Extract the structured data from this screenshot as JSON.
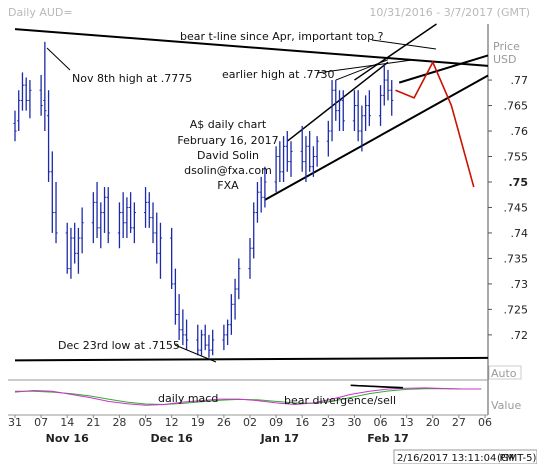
{
  "header": {
    "title": "Daily AUD=",
    "date_range": "10/31/2016 - 3/7/2017 (GMT)"
  },
  "right_panel": {
    "price_label": "Price",
    "currency_label": "USD",
    "auto_label": "Auto",
    "value_label": "Value"
  },
  "footer": {
    "timestamp": "2/16/2017 13:11:04 PM",
    "timezone": "(GMT-5)"
  },
  "annotations": {
    "bear_tline": "bear t-line since Apr, important top ?",
    "earlier_high": "earlier high at .7730",
    "nov_high": "Nov 8th high at .7775",
    "dec_low": "Dec 23rd low at .7155",
    "chart_desc_1": "A$ daily chart",
    "chart_desc_2": "February 16, 2017",
    "chart_desc_3": "David Solin",
    "chart_desc_4": "dsolin@fxa.com",
    "chart_desc_5": "FXA",
    "macd": "daily macd",
    "bear_div": "bear divergence/sell"
  },
  "colors": {
    "bar": "#1d2ba8",
    "projection": "#cc1100",
    "macd_line": "#cc33cc",
    "signal_line": "#33aa33"
  },
  "chart_data": {
    "type": "ohlc",
    "ylim": [
      0.7135,
      0.781
    ],
    "yticks": [
      {
        "value": 0.77,
        "label": ".77"
      },
      {
        "value": 0.765,
        "label": ".765"
      },
      {
        "value": 0.76,
        "label": ".76"
      },
      {
        "value": 0.755,
        "label": ".755"
      },
      {
        "value": 0.75,
        "label": ".75",
        "bold": true
      },
      {
        "value": 0.745,
        "label": ".745"
      },
      {
        "value": 0.74,
        "label": ".74"
      },
      {
        "value": 0.735,
        "label": ".735"
      },
      {
        "value": 0.73,
        "label": ".73"
      },
      {
        "value": 0.725,
        "label": ".725"
      },
      {
        "value": 0.72,
        "label": ".72"
      }
    ],
    "xticks": [
      {
        "day": 0,
        "label": "31"
      },
      {
        "day": 7,
        "label": "07"
      },
      {
        "day": 14,
        "label": "14"
      },
      {
        "day": 21,
        "label": "21"
      },
      {
        "day": 28,
        "label": "28"
      },
      {
        "day": 35,
        "label": "05"
      },
      {
        "day": 42,
        "label": "12"
      },
      {
        "day": 49,
        "label": "19"
      },
      {
        "day": 56,
        "label": "26"
      },
      {
        "day": 63,
        "label": "02"
      },
      {
        "day": 70,
        "label": "09"
      },
      {
        "day": 77,
        "label": "16"
      },
      {
        "day": 84,
        "label": "23"
      },
      {
        "day": 91,
        "label": "30"
      },
      {
        "day": 98,
        "label": "06"
      },
      {
        "day": 105,
        "label": "13"
      },
      {
        "day": 112,
        "label": "20"
      },
      {
        "day": 119,
        "label": "27"
      },
      {
        "day": 126,
        "label": "06"
      }
    ],
    "months": [
      {
        "day": 14,
        "label": "Nov 16"
      },
      {
        "day": 42,
        "label": "Dec 16"
      },
      {
        "day": 71,
        "label": "Jan 17"
      },
      {
        "day": 100,
        "label": "Feb 17"
      }
    ],
    "bars": [
      {
        "day": 0,
        "o": 0.7615,
        "h": 0.764,
        "l": 0.758,
        "c": 0.76
      },
      {
        "day": 1,
        "o": 0.762,
        "h": 0.768,
        "l": 0.76,
        "c": 0.766
      },
      {
        "day": 2,
        "o": 0.766,
        "h": 0.7715,
        "l": 0.764,
        "c": 0.769
      },
      {
        "day": 3,
        "o": 0.769,
        "h": 0.7705,
        "l": 0.764,
        "c": 0.766
      },
      {
        "day": 4,
        "o": 0.766,
        "h": 0.77,
        "l": 0.7625,
        "c": 0.768
      },
      {
        "day": 7,
        "o": 0.768,
        "h": 0.771,
        "l": 0.763,
        "c": 0.765
      },
      {
        "day": 8,
        "o": 0.766,
        "h": 0.7775,
        "l": 0.76,
        "c": 0.764
      },
      {
        "day": 9,
        "o": 0.763,
        "h": 0.768,
        "l": 0.75,
        "c": 0.752
      },
      {
        "day": 10,
        "o": 0.752,
        "h": 0.756,
        "l": 0.74,
        "c": 0.744
      },
      {
        "day": 11,
        "o": 0.744,
        "h": 0.75,
        "l": 0.738,
        "c": 0.74
      },
      {
        "day": 14,
        "o": 0.74,
        "h": 0.742,
        "l": 0.732,
        "c": 0.733
      },
      {
        "day": 15,
        "o": 0.733,
        "h": 0.741,
        "l": 0.731,
        "c": 0.739
      },
      {
        "day": 16,
        "o": 0.739,
        "h": 0.742,
        "l": 0.734,
        "c": 0.736
      },
      {
        "day": 17,
        "o": 0.736,
        "h": 0.741,
        "l": 0.732,
        "c": 0.739
      },
      {
        "day": 18,
        "o": 0.739,
        "h": 0.745,
        "l": 0.736,
        "c": 0.742
      },
      {
        "day": 21,
        "o": 0.742,
        "h": 0.748,
        "l": 0.738,
        "c": 0.746
      },
      {
        "day": 22,
        "o": 0.746,
        "h": 0.75,
        "l": 0.739,
        "c": 0.741
      },
      {
        "day": 23,
        "o": 0.741,
        "h": 0.746,
        "l": 0.737,
        "c": 0.744
      },
      {
        "day": 24,
        "o": 0.744,
        "h": 0.749,
        "l": 0.74,
        "c": 0.747
      },
      {
        "day": 25,
        "o": 0.747,
        "h": 0.749,
        "l": 0.738,
        "c": 0.74
      },
      {
        "day": 28,
        "o": 0.74,
        "h": 0.746,
        "l": 0.737,
        "c": 0.744
      },
      {
        "day": 29,
        "o": 0.744,
        "h": 0.748,
        "l": 0.739,
        "c": 0.742
      },
      {
        "day": 30,
        "o": 0.742,
        "h": 0.747,
        "l": 0.739,
        "c": 0.745
      },
      {
        "day": 31,
        "o": 0.745,
        "h": 0.748,
        "l": 0.74,
        "c": 0.741
      },
      {
        "day": 32,
        "o": 0.741,
        "h": 0.746,
        "l": 0.738,
        "c": 0.744
      },
      {
        "day": 35,
        "o": 0.744,
        "h": 0.749,
        "l": 0.741,
        "c": 0.746
      },
      {
        "day": 36,
        "o": 0.746,
        "h": 0.748,
        "l": 0.741,
        "c": 0.743
      },
      {
        "day": 37,
        "o": 0.743,
        "h": 0.746,
        "l": 0.738,
        "c": 0.74
      },
      {
        "day": 38,
        "o": 0.74,
        "h": 0.744,
        "l": 0.734,
        "c": 0.736
      },
      {
        "day": 39,
        "o": 0.736,
        "h": 0.742,
        "l": 0.731,
        "c": 0.739
      },
      {
        "day": 42,
        "o": 0.739,
        "h": 0.741,
        "l": 0.729,
        "c": 0.73
      },
      {
        "day": 43,
        "o": 0.73,
        "h": 0.733,
        "l": 0.722,
        "c": 0.724
      },
      {
        "day": 44,
        "o": 0.724,
        "h": 0.728,
        "l": 0.719,
        "c": 0.721
      },
      {
        "day": 45,
        "o": 0.721,
        "h": 0.725,
        "l": 0.718,
        "c": 0.72
      },
      {
        "day": 46,
        "o": 0.72,
        "h": 0.723,
        "l": 0.717,
        "c": 0.719
      },
      {
        "day": 49,
        "o": 0.719,
        "h": 0.722,
        "l": 0.716,
        "c": 0.717
      },
      {
        "day": 50,
        "o": 0.717,
        "h": 0.721,
        "l": 0.716,
        "c": 0.72
      },
      {
        "day": 51,
        "o": 0.72,
        "h": 0.722,
        "l": 0.717,
        "c": 0.718
      },
      {
        "day": 52,
        "o": 0.718,
        "h": 0.72,
        "l": 0.7155,
        "c": 0.717
      },
      {
        "day": 53,
        "o": 0.717,
        "h": 0.721,
        "l": 0.716,
        "c": 0.719
      },
      {
        "day": 56,
        "o": 0.719,
        "h": 0.722,
        "l": 0.717,
        "c": 0.72
      },
      {
        "day": 57,
        "o": 0.72,
        "h": 0.723,
        "l": 0.718,
        "c": 0.722
      },
      {
        "day": 58,
        "o": 0.722,
        "h": 0.728,
        "l": 0.72,
        "c": 0.726
      },
      {
        "day": 59,
        "o": 0.726,
        "h": 0.731,
        "l": 0.723,
        "c": 0.729
      },
      {
        "day": 60,
        "o": 0.729,
        "h": 0.735,
        "l": 0.727,
        "c": 0.733
      },
      {
        "day": 63,
        "o": 0.733,
        "h": 0.739,
        "l": 0.731,
        "c": 0.737
      },
      {
        "day": 64,
        "o": 0.737,
        "h": 0.746,
        "l": 0.735,
        "c": 0.744
      },
      {
        "day": 65,
        "o": 0.744,
        "h": 0.75,
        "l": 0.742,
        "c": 0.748
      },
      {
        "day": 66,
        "o": 0.748,
        "h": 0.751,
        "l": 0.744,
        "c": 0.747
      },
      {
        "day": 67,
        "o": 0.747,
        "h": 0.753,
        "l": 0.745,
        "c": 0.75
      },
      {
        "day": 70,
        "o": 0.75,
        "h": 0.757,
        "l": 0.748,
        "c": 0.755
      },
      {
        "day": 71,
        "o": 0.755,
        "h": 0.758,
        "l": 0.75,
        "c": 0.752
      },
      {
        "day": 72,
        "o": 0.752,
        "h": 0.759,
        "l": 0.75,
        "c": 0.757
      },
      {
        "day": 73,
        "o": 0.757,
        "h": 0.76,
        "l": 0.752,
        "c": 0.754
      },
      {
        "day": 74,
        "o": 0.754,
        "h": 0.758,
        "l": 0.751,
        "c": 0.756
      },
      {
        "day": 77,
        "o": 0.756,
        "h": 0.761,
        "l": 0.752,
        "c": 0.754
      },
      {
        "day": 78,
        "o": 0.754,
        "h": 0.759,
        "l": 0.75,
        "c": 0.757
      },
      {
        "day": 79,
        "o": 0.757,
        "h": 0.76,
        "l": 0.752,
        "c": 0.753
      },
      {
        "day": 80,
        "o": 0.753,
        "h": 0.757,
        "l": 0.751,
        "c": 0.755
      },
      {
        "day": 81,
        "o": 0.755,
        "h": 0.759,
        "l": 0.753,
        "c": 0.758
      },
      {
        "day": 84,
        "o": 0.758,
        "h": 0.762,
        "l": 0.755,
        "c": 0.76
      },
      {
        "day": 85,
        "o": 0.76,
        "h": 0.77,
        "l": 0.758,
        "c": 0.768
      },
      {
        "day": 86,
        "o": 0.768,
        "h": 0.77,
        "l": 0.762,
        "c": 0.764
      },
      {
        "day": 87,
        "o": 0.764,
        "h": 0.768,
        "l": 0.76,
        "c": 0.766
      },
      {
        "day": 88,
        "o": 0.766,
        "h": 0.768,
        "l": 0.76,
        "c": 0.762
      },
      {
        "day": 91,
        "o": 0.762,
        "h": 0.768,
        "l": 0.76,
        "c": 0.765
      },
      {
        "day": 92,
        "o": 0.765,
        "h": 0.768,
        "l": 0.758,
        "c": 0.76
      },
      {
        "day": 93,
        "o": 0.76,
        "h": 0.765,
        "l": 0.756,
        "c": 0.763
      },
      {
        "day": 94,
        "o": 0.763,
        "h": 0.767,
        "l": 0.76,
        "c": 0.765
      },
      {
        "day": 95,
        "o": 0.765,
        "h": 0.768,
        "l": 0.761,
        "c": 0.763
      },
      {
        "day": 98,
        "o": 0.763,
        "h": 0.769,
        "l": 0.761,
        "c": 0.767
      },
      {
        "day": 99,
        "o": 0.767,
        "h": 0.773,
        "l": 0.765,
        "c": 0.77
      },
      {
        "day": 100,
        "o": 0.77,
        "h": 0.772,
        "l": 0.766,
        "c": 0.768
      },
      {
        "day": 101,
        "o": 0.768,
        "h": 0.77,
        "l": 0.763,
        "c": 0.766
      }
    ],
    "trendlines": [
      {
        "name": "bear-tline",
        "x1": 0,
        "y1": 0.78,
        "x2": 132,
        "y2": 0.7725,
        "w": 2
      },
      {
        "name": "upper-channel",
        "x1": 73,
        "y1": 0.758,
        "x2": 100,
        "y2": 0.7735,
        "w": 1.5
      },
      {
        "name": "lower-channel",
        "x1": 67,
        "y1": 0.7465,
        "x2": 132,
        "y2": 0.773,
        "w": 2
      },
      {
        "name": "wedge-top",
        "x1": 103,
        "y1": 0.7695,
        "x2": 132,
        "y2": 0.776,
        "w": 2
      },
      {
        "name": "steep-line",
        "x1": 91,
        "y1": 0.77,
        "x2": 113,
        "y2": 0.781,
        "w": 1.5
      },
      {
        "name": "recent-highs",
        "x1": 86,
        "y1": 0.77,
        "x2": 100,
        "y2": 0.774,
        "w": 1
      },
      {
        "name": "dec-low-line",
        "x1": 0,
        "y1": 0.715,
        "x2": 132,
        "y2": 0.7155,
        "w": 2
      }
    ],
    "projection": [
      {
        "day": 102,
        "v": 0.768
      },
      {
        "day": 107,
        "v": 0.7665
      },
      {
        "day": 112,
        "v": 0.7735
      },
      {
        "day": 117,
        "v": 0.765
      },
      {
        "day": 123,
        "v": 0.749
      }
    ],
    "macd": {
      "ylim": [
        -1,
        1
      ],
      "macd_values": [
        0.35,
        0.45,
        0.4,
        0.2,
        0.0,
        -0.25,
        -0.4,
        -0.5,
        -0.45,
        -0.3,
        -0.2,
        -0.1,
        -0.1,
        -0.2,
        -0.35,
        -0.45,
        -0.35,
        -0.1,
        0.2,
        0.4,
        0.55,
        0.6,
        0.62,
        0.58,
        0.55,
        0.55
      ],
      "signal_values": [
        0.4,
        0.4,
        0.35,
        0.25,
        0.1,
        -0.1,
        -0.3,
        -0.42,
        -0.45,
        -0.38,
        -0.28,
        -0.18,
        -0.12,
        -0.15,
        -0.25,
        -0.35,
        -0.38,
        -0.25,
        0.0,
        0.25,
        0.42,
        0.52,
        0.56,
        0.56,
        0.55,
        0.55
      ],
      "step_days": 5
    }
  }
}
